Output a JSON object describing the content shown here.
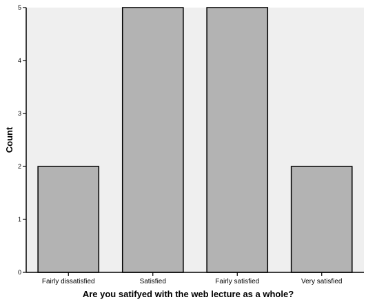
{
  "chart_data": {
    "type": "bar",
    "categories": [
      "Fairly dissatisfied",
      "Satisfied",
      "Fairly satisfied",
      "Very satisfied"
    ],
    "values": [
      2,
      5,
      5,
      2
    ],
    "xlabel": "Are you satifyed with the web lecture as a whole?",
    "ylabel": "Count",
    "ylim": [
      0,
      5
    ],
    "yticks": [
      0,
      1,
      2,
      3,
      4,
      5
    ],
    "grid": false,
    "colors": {
      "bar_fill": "#b3b3b3",
      "bar_stroke": "#000000",
      "plot_background": "#efefef",
      "axis": "#000000"
    }
  }
}
